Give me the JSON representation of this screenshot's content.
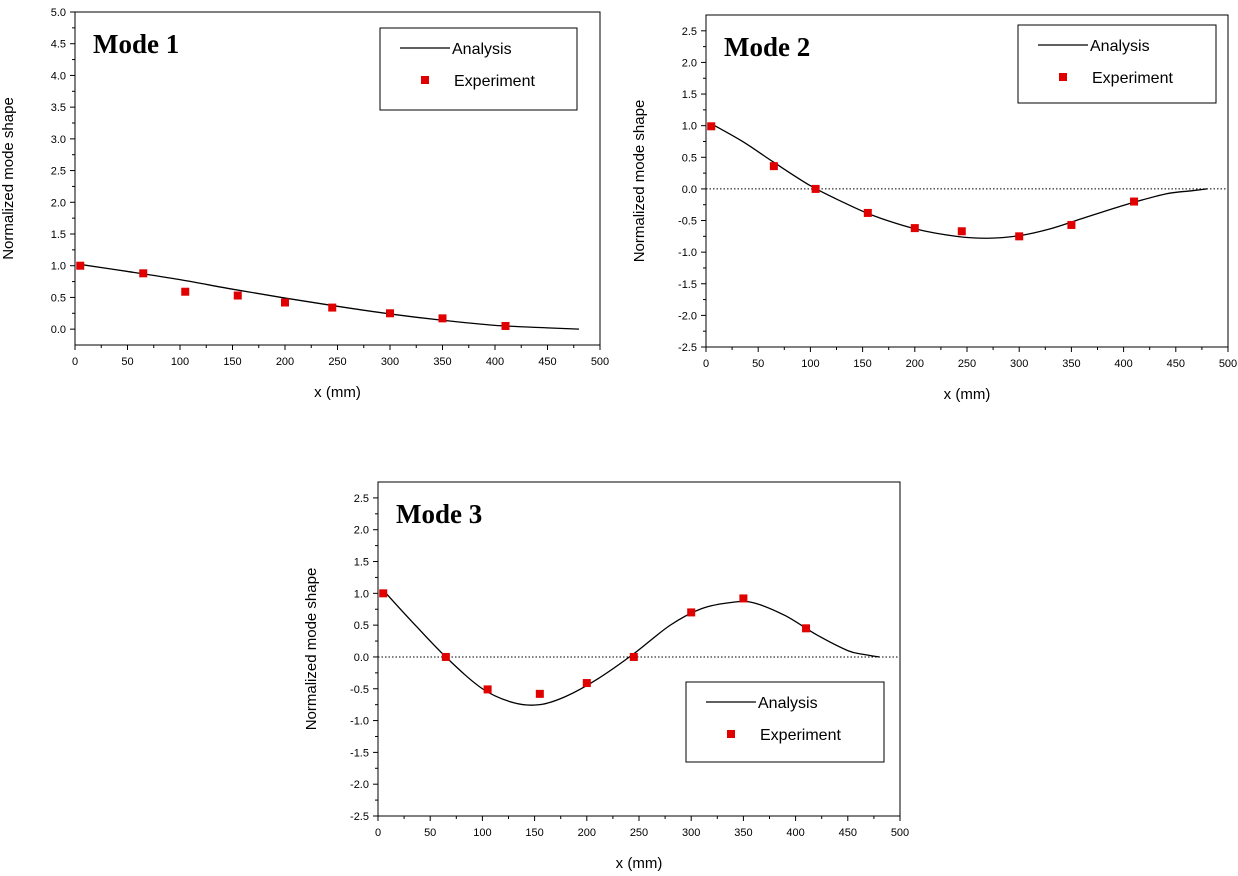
{
  "chart_data": [
    {
      "type": "line",
      "title": "Mode 1",
      "xlabel": "x (mm)",
      "ylabel": "Normalized mode shape",
      "xlim": [
        0,
        500
      ],
      "ylim": [
        -0.25,
        5.0
      ],
      "xticks": [
        "0",
        "50",
        "100",
        "150",
        "200",
        "250",
        "300",
        "350",
        "400",
        "450",
        "500"
      ],
      "yticks": [
        "0.0",
        "0.5",
        "1.0",
        "1.5",
        "2.0",
        "2.5",
        "3.0",
        "3.5",
        "4.0",
        "4.5",
        "5.0"
      ],
      "zero_line": false,
      "legend_position": "top-right",
      "series": [
        {
          "name": "Analysis",
          "style": "line",
          "color": "#000000",
          "x": [
            5,
            50,
            100,
            150,
            200,
            250,
            300,
            350,
            400,
            450,
            480
          ],
          "y": [
            1.02,
            0.91,
            0.78,
            0.63,
            0.49,
            0.36,
            0.24,
            0.14,
            0.06,
            0.02,
            0.0
          ]
        },
        {
          "name": "Experiment",
          "style": "marker",
          "color": "#e00000",
          "x": [
            5,
            65,
            105,
            155,
            200,
            245,
            300,
            350,
            410
          ],
          "y": [
            1.0,
            0.88,
            0.59,
            0.53,
            0.42,
            0.34,
            0.25,
            0.17,
            0.05
          ]
        }
      ]
    },
    {
      "type": "line",
      "title": "Mode 2",
      "xlabel": "x (mm)",
      "ylabel": "Normalized mode shape",
      "xlim": [
        0,
        500
      ],
      "ylim": [
        -2.5,
        2.75
      ],
      "xticks": [
        "0",
        "50",
        "100",
        "150",
        "200",
        "250",
        "300",
        "350",
        "400",
        "450",
        "500"
      ],
      "yticks": [
        "-2.5",
        "-2.0",
        "-1.5",
        "-1.0",
        "-0.5",
        "0.0",
        "0.5",
        "1.0",
        "1.5",
        "2.0",
        "2.5"
      ],
      "zero_line": true,
      "legend_position": "top-right",
      "series": [
        {
          "name": "Analysis",
          "style": "line",
          "color": "#000000",
          "x": [
            5,
            35,
            65,
            100,
            130,
            160,
            200,
            240,
            270,
            300,
            330,
            360,
            400,
            440,
            465,
            480
          ],
          "y": [
            1.03,
            0.75,
            0.42,
            0.05,
            -0.2,
            -0.42,
            -0.63,
            -0.75,
            -0.78,
            -0.74,
            -0.63,
            -0.47,
            -0.26,
            -0.08,
            -0.03,
            0.0
          ]
        },
        {
          "name": "Experiment",
          "style": "marker",
          "color": "#e00000",
          "x": [
            5,
            65,
            105,
            155,
            200,
            245,
            300,
            350,
            410
          ],
          "y": [
            0.99,
            0.36,
            0.0,
            -0.38,
            -0.62,
            -0.67,
            -0.75,
            -0.57,
            -0.2
          ]
        }
      ]
    },
    {
      "type": "line",
      "title": "Mode 3",
      "xlabel": "x (mm)",
      "ylabel": "Normalized mode shape",
      "xlim": [
        0,
        500
      ],
      "ylim": [
        -2.5,
        2.75
      ],
      "xticks": [
        "0",
        "50",
        "100",
        "150",
        "200",
        "250",
        "300",
        "350",
        "400",
        "450",
        "500"
      ],
      "yticks": [
        "-2.5",
        "-2.0",
        "-1.5",
        "-1.0",
        "-0.5",
        "0.0",
        "0.5",
        "1.0",
        "1.5",
        "2.0",
        "2.5"
      ],
      "zero_line": true,
      "legend_position": "bottom-right",
      "series": [
        {
          "name": "Analysis",
          "style": "line",
          "color": "#000000",
          "x": [
            5,
            30,
            65,
            100,
            130,
            155,
            180,
            210,
            245,
            280,
            310,
            340,
            360,
            390,
            420,
            450,
            465,
            480
          ],
          "y": [
            1.05,
            0.6,
            0.0,
            -0.5,
            -0.72,
            -0.75,
            -0.62,
            -0.35,
            0.05,
            0.5,
            0.76,
            0.86,
            0.85,
            0.65,
            0.35,
            0.1,
            0.04,
            0.0
          ]
        },
        {
          "name": "Experiment",
          "style": "marker",
          "color": "#e00000",
          "x": [
            5,
            65,
            105,
            155,
            200,
            245,
            300,
            350,
            410
          ],
          "y": [
            1.0,
            0.0,
            -0.51,
            -0.58,
            -0.41,
            0.0,
            0.7,
            0.92,
            0.45
          ]
        }
      ]
    }
  ]
}
